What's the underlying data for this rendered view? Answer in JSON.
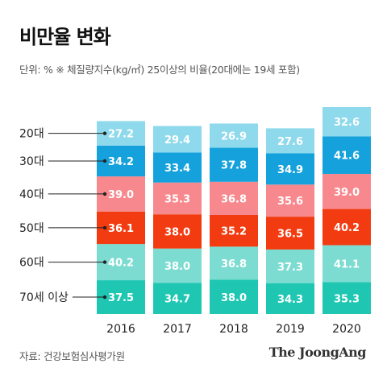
{
  "title": "비만율 변화",
  "subtitle": "단위: %  ※ 체질량지수(kg/㎡) 25이상의 비율(20대에는 19세 포함)",
  "source": "자료: 건강보험심사평가원",
  "brand": "The JoongAng",
  "chart_data": {
    "type": "bar",
    "stacked": true,
    "categories": [
      "2016",
      "2017",
      "2018",
      "2019",
      "2020"
    ],
    "series": [
      {
        "name": "70세 이상",
        "color": "#1fc7b3",
        "values": [
          37.5,
          34.7,
          38.0,
          34.3,
          35.3
        ],
        "labels": [
          "37.5",
          "34.7",
          "38.0",
          "34.3",
          "35.3"
        ]
      },
      {
        "name": "60대",
        "color": "#7ddcd1",
        "values": [
          40.2,
          38.0,
          36.8,
          37.3,
          41.1
        ],
        "labels": [
          "40.2",
          "38.0",
          "36.8",
          "37.3",
          "41.1"
        ]
      },
      {
        "name": "50대",
        "color": "#f23b10",
        "values": [
          36.1,
          38.0,
          35.2,
          36.5,
          40.2
        ],
        "labels": [
          "36.1",
          "38.0",
          "35.2",
          "36.5",
          "40.2"
        ]
      },
      {
        "name": "40대",
        "color": "#f7888d",
        "values": [
          39.0,
          35.3,
          36.8,
          35.6,
          39.0
        ],
        "labels": [
          "39.0",
          "35.3",
          "36.8",
          "35.6",
          "39.0"
        ]
      },
      {
        "name": "30대",
        "color": "#15a2dc",
        "values": [
          34.2,
          33.4,
          37.8,
          34.9,
          41.6
        ],
        "labels": [
          "34.2",
          "33.4",
          "37.8",
          "34.9",
          "41.6"
        ]
      },
      {
        "name": "20대",
        "color": "#8ed9ec",
        "values": [
          27.2,
          29.4,
          26.9,
          27.6,
          32.6
        ],
        "labels": [
          "27.2",
          "29.4",
          "26.9",
          "27.6",
          "32.6"
        ]
      }
    ],
    "legend_placement": "left"
  }
}
